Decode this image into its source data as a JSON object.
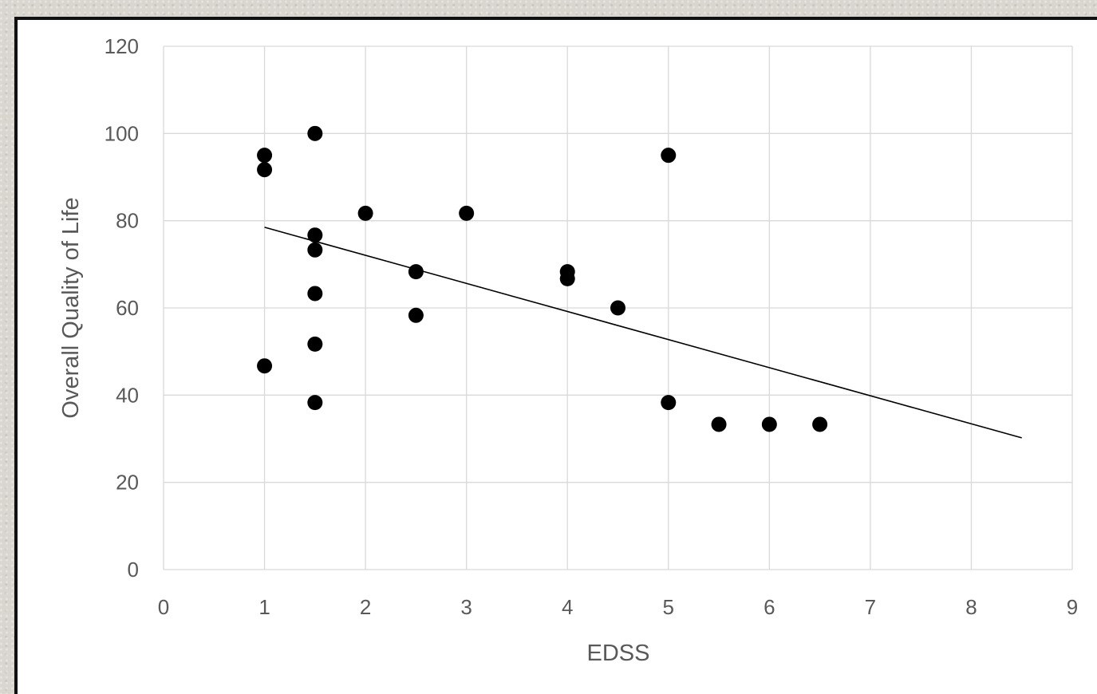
{
  "chart_data": {
    "type": "scatter",
    "title": "",
    "xlabel": "EDSS",
    "ylabel": "Overall Quality of Life",
    "xlim": [
      0,
      9
    ],
    "ylim": [
      0,
      120
    ],
    "x_ticks": [
      "0",
      "1",
      "2",
      "3",
      "4",
      "5",
      "6",
      "7",
      "8",
      "9"
    ],
    "y_ticks": [
      "0",
      "20",
      "40",
      "60",
      "80",
      "100",
      "120"
    ],
    "grid": true,
    "legend": "none",
    "marker_color": "#000000",
    "points": [
      {
        "x": 1,
        "y": 95
      },
      {
        "x": 1,
        "y": 91.7
      },
      {
        "x": 1,
        "y": 46.7
      },
      {
        "x": 1.5,
        "y": 100
      },
      {
        "x": 1.5,
        "y": 76.7
      },
      {
        "x": 1.5,
        "y": 73.3
      },
      {
        "x": 1.5,
        "y": 63.3
      },
      {
        "x": 1.5,
        "y": 51.7
      },
      {
        "x": 1.5,
        "y": 38.3
      },
      {
        "x": 2,
        "y": 81.7
      },
      {
        "x": 2.5,
        "y": 68.3
      },
      {
        "x": 2.5,
        "y": 58.3
      },
      {
        "x": 3,
        "y": 81.7
      },
      {
        "x": 4,
        "y": 68.3
      },
      {
        "x": 4,
        "y": 66.7
      },
      {
        "x": 4.5,
        "y": 60
      },
      {
        "x": 5,
        "y": 95
      },
      {
        "x": 5,
        "y": 38.3
      },
      {
        "x": 5.5,
        "y": 33.3
      },
      {
        "x": 6,
        "y": 33.3
      },
      {
        "x": 6.5,
        "y": 33.3
      }
    ],
    "trendline": {
      "type": "linear",
      "x": [
        1,
        8.5
      ],
      "y": [
        78.5,
        30.2
      ]
    }
  }
}
